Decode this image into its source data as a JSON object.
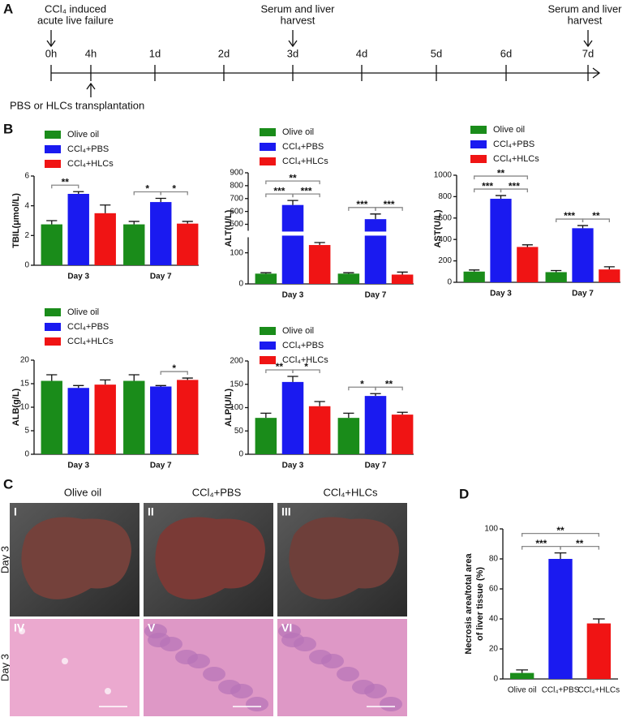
{
  "panel_labels": [
    "A",
    "B",
    "C",
    "D"
  ],
  "timeline": {
    "ticks": [
      "0h",
      "4h",
      "1d",
      "2d",
      "3d",
      "4d",
      "5d",
      "6d",
      "7d"
    ],
    "events_above": [
      [
        "CCl₄ induced",
        "acute live failure"
      ],
      [
        "Serum and liver",
        "harvest"
      ],
      [
        "Serum and liver",
        "harvest"
      ]
    ],
    "event_below": "PBS or HLCs transplantation"
  },
  "photos": {
    "columns": [
      "Olive oil",
      "CCl₄+PBS",
      "CCl₄+HLCs"
    ],
    "row_labels": [
      "Day 3",
      "Day 3"
    ],
    "panels": [
      "I",
      "II",
      "III",
      "IV",
      "V",
      "VI"
    ]
  },
  "chart_data": [
    {
      "type": "bar",
      "y_label": "TBIL(μmol/L)",
      "categories": [
        "Day 3",
        "Day 7"
      ],
      "ylim": [
        0,
        6
      ],
      "yticks": [
        0,
        2,
        4,
        6
      ],
      "series": [
        {
          "name": "Olive oil",
          "color": "#1a8c1a",
          "values": [
            2.75,
            2.75
          ],
          "errors": [
            0.25,
            0.2
          ]
        },
        {
          "name": "CCl₄+PBS",
          "color": "#1a1af0",
          "values": [
            4.8,
            4.25
          ],
          "errors": [
            0.15,
            0.25
          ]
        },
        {
          "name": "CCl₄+HLCs",
          "color": "#f01414",
          "values": [
            3.5,
            2.8
          ],
          "errors": [
            0.55,
            0.15
          ]
        }
      ],
      "annotations": [
        "**",
        "*",
        "*"
      ]
    },
    {
      "type": "bar",
      "y_label": "ALT(U/L)",
      "categories": [
        "Day 3",
        "Day 7"
      ],
      "ylim": [
        0,
        900
      ],
      "axis_break": [
        150,
        450
      ],
      "yticks": [
        0,
        100,
        500,
        600,
        700,
        800,
        900
      ],
      "series": [
        {
          "name": "Olive oil",
          "color": "#1a8c1a",
          "values": [
            33,
            33
          ],
          "errors": [
            3,
            3
          ]
        },
        {
          "name": "CCl₄+PBS",
          "color": "#1a1af0",
          "values": [
            650,
            540
          ],
          "errors": [
            35,
            40
          ]
        },
        {
          "name": "CCl₄+HLCs",
          "color": "#f01414",
          "values": [
            125,
            30
          ],
          "errors": [
            8,
            8
          ]
        }
      ],
      "annotations": [
        "***",
        "***",
        "**",
        "***",
        "***"
      ]
    },
    {
      "type": "bar",
      "y_label": "AST(U/L)",
      "categories": [
        "Day 3",
        "Day 7"
      ],
      "ylim": [
        0,
        1000
      ],
      "yticks": [
        0,
        200,
        400,
        600,
        800,
        1000
      ],
      "series": [
        {
          "name": "Olive oil",
          "color": "#1a8c1a",
          "values": [
            100,
            95
          ],
          "errors": [
            15,
            15
          ]
        },
        {
          "name": "CCl₄+PBS",
          "color": "#1a1af0",
          "values": [
            780,
            505
          ],
          "errors": [
            30,
            25
          ]
        },
        {
          "name": "CCl₄+HLCs",
          "color": "#f01414",
          "values": [
            330,
            120
          ],
          "errors": [
            20,
            25
          ]
        }
      ],
      "annotations": [
        "***",
        "***",
        "**",
        "***",
        "**"
      ]
    },
    {
      "type": "bar",
      "y_label": "ALB(g/L)",
      "categories": [
        "Day 3",
        "Day 7"
      ],
      "ylim": [
        0,
        20
      ],
      "yticks": [
        0,
        5,
        10,
        15,
        20
      ],
      "series": [
        {
          "name": "Olive oil",
          "color": "#1a8c1a",
          "values": [
            15.6,
            15.6
          ],
          "errors": [
            1.3,
            1.3
          ]
        },
        {
          "name": "CCl₄+PBS",
          "color": "#1a1af0",
          "values": [
            14.1,
            14.4
          ],
          "errors": [
            0.5,
            0.2
          ]
        },
        {
          "name": "CCl₄+HLCs",
          "color": "#f01414",
          "values": [
            14.8,
            15.8
          ],
          "errors": [
            1,
            0.4
          ]
        }
      ],
      "annotations": [
        "*"
      ]
    },
    {
      "type": "bar",
      "y_label": "ALP(U/L)",
      "categories": [
        "Day 3",
        "Day 7"
      ],
      "ylim": [
        0,
        200
      ],
      "yticks": [
        0,
        50,
        100,
        150,
        200
      ],
      "series": [
        {
          "name": "Olive oil",
          "color": "#1a8c1a",
          "values": [
            78,
            78
          ],
          "errors": [
            10,
            10
          ]
        },
        {
          "name": "CCl₄+PBS",
          "color": "#1a1af0",
          "values": [
            155,
            125
          ],
          "errors": [
            12,
            5
          ]
        },
        {
          "name": "CCl₄+HLCs",
          "color": "#f01414",
          "values": [
            103,
            85
          ],
          "errors": [
            10,
            5
          ]
        }
      ],
      "annotations": [
        "**",
        "*",
        "*",
        "**"
      ]
    },
    {
      "type": "bar",
      "y_label": [
        "Necrosis area/total area",
        "of liver tissue (%)"
      ],
      "categories": [
        "Olive oil",
        "CCl₄+PBS",
        "CCl₄+HLCs"
      ],
      "values": [
        4,
        80,
        37
      ],
      "errors": [
        2,
        4,
        3
      ],
      "colors": [
        "#1a8c1a",
        "#1a1af0",
        "#f01414"
      ],
      "ylim": [
        0,
        100
      ],
      "yticks": [
        0,
        20,
        40,
        60,
        80,
        100
      ],
      "annotations": [
        "***",
        "**",
        "**"
      ]
    }
  ]
}
